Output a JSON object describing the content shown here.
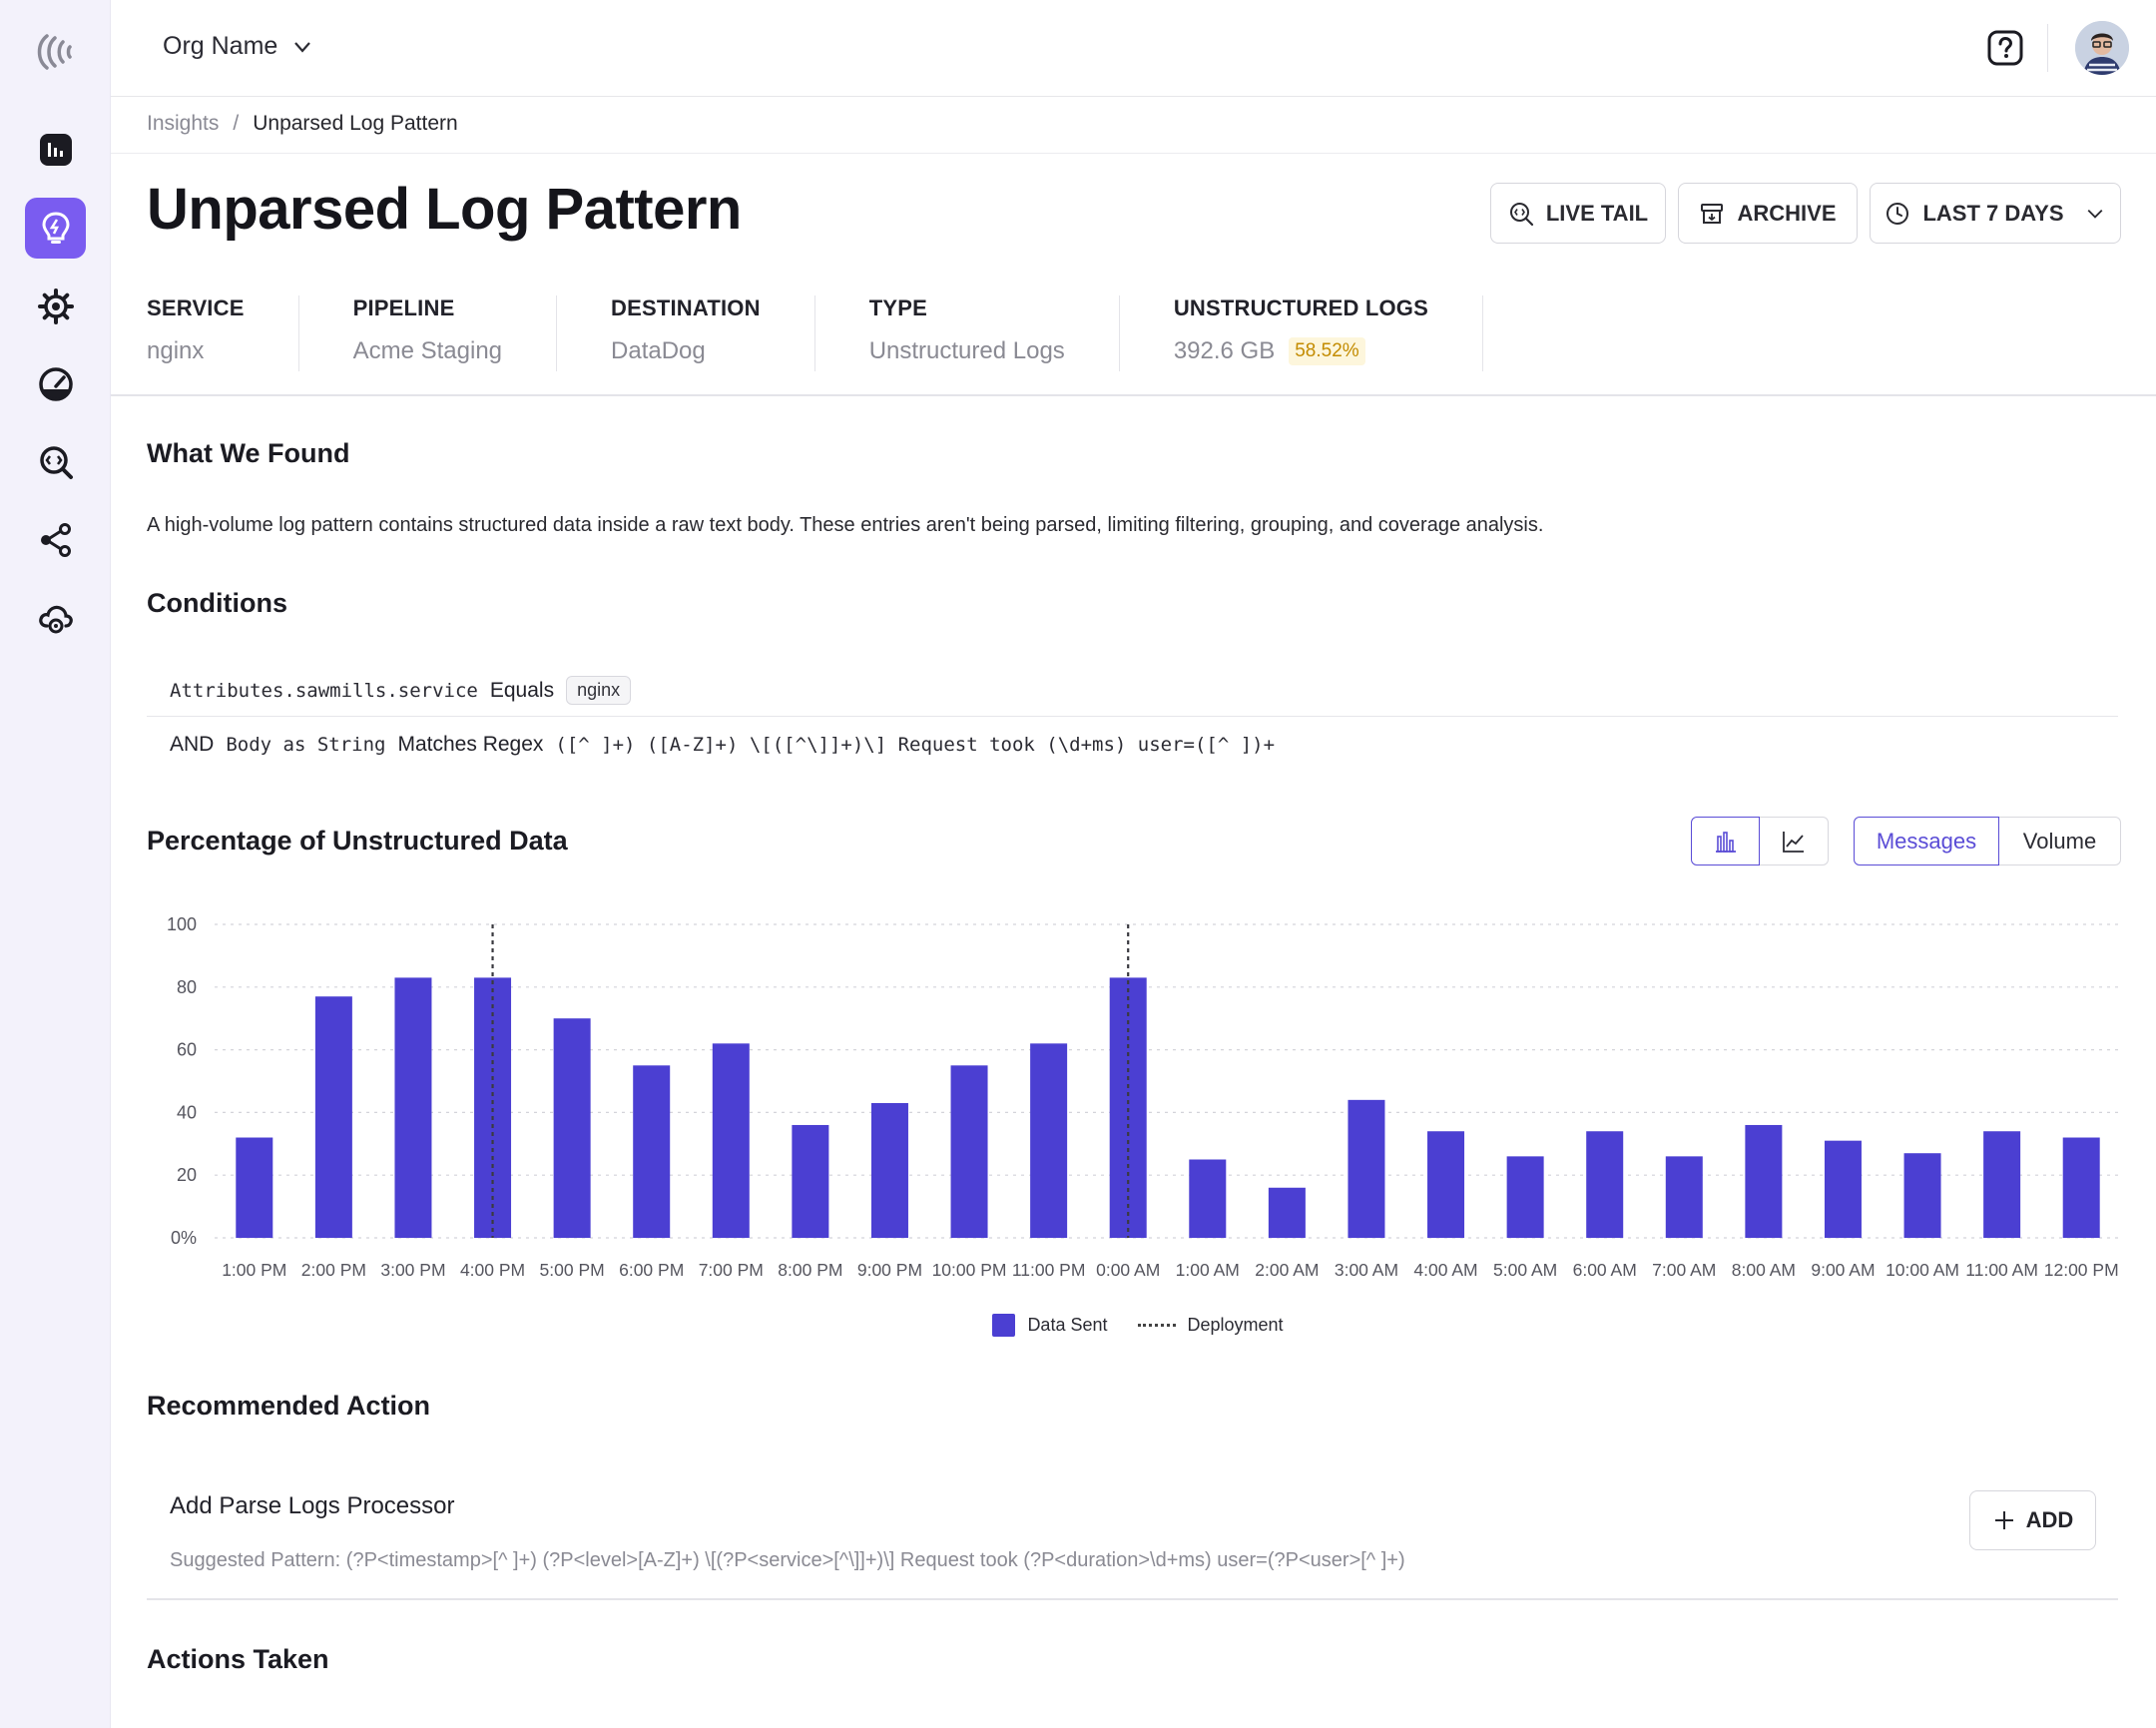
{
  "org": {
    "name": "Org Name"
  },
  "breadcrumb": {
    "parent": "Insights",
    "separator": "/",
    "current": "Unparsed Log Pattern"
  },
  "page": {
    "title": "Unparsed Log Pattern"
  },
  "actions": {
    "live_tail": "LIVE TAIL",
    "archive": "ARCHIVE",
    "range": "LAST 7 DAYS"
  },
  "meta": [
    {
      "label": "SERVICE",
      "value": "nginx"
    },
    {
      "label": "PIPELINE",
      "value": "Acme Staging"
    },
    {
      "label": "DESTINATION",
      "value": "DataDog"
    },
    {
      "label": "TYPE",
      "value": "Unstructured Logs"
    },
    {
      "label": "UNSTRUCTURED LOGS",
      "value": "392.6 GB",
      "badge": "58.52%"
    }
  ],
  "found": {
    "heading": "What We Found",
    "text": "A high-volume log pattern contains structured data inside a raw text body. These entries aren't being parsed, limiting filtering, grouping, and coverage analysis."
  },
  "conditions": {
    "heading": "Conditions",
    "row1": {
      "field": "Attributes.sawmills.service",
      "op": "Equals",
      "value": "nginx"
    },
    "row2": {
      "joiner": "AND",
      "field": "Body as String",
      "op": "Matches Regex",
      "value": "([^ ]+) ([A-Z]+) \\[([^\\]]+)\\] Request took (\\d+ms) user=([^ ])+"
    }
  },
  "chart_section": {
    "heading": "Percentage of Unstructured Data",
    "toggle_messages": "Messages",
    "toggle_volume": "Volume"
  },
  "chart_data": {
    "type": "bar",
    "categories": [
      "1:00 PM",
      "2:00 PM",
      "3:00 PM",
      "4:00 PM",
      "5:00 PM",
      "6:00 PM",
      "7:00 PM",
      "8:00 PM",
      "9:00 PM",
      "10:00 PM",
      "11:00 PM",
      "0:00 AM",
      "1:00 AM",
      "2:00 AM",
      "3:00 AM",
      "4:00 AM",
      "5:00 AM",
      "6:00 AM",
      "7:00 AM",
      "8:00 AM",
      "9:00 AM",
      "10:00 AM",
      "11:00 AM",
      "12:00 PM"
    ],
    "series": [
      {
        "name": "Data Sent",
        "values": [
          32,
          77,
          83,
          83,
          70,
          55,
          62,
          36,
          43,
          55,
          62,
          83,
          25,
          16,
          44,
          34,
          26,
          34,
          26,
          36,
          31,
          27,
          34,
          32
        ]
      }
    ],
    "deployments": [
      "4:00 PM",
      "0:00 AM"
    ],
    "deployment_label": "Deployment",
    "ylim": [
      0,
      100
    ],
    "yticks": [
      "0%",
      "20",
      "40",
      "60",
      "80",
      "100"
    ],
    "color": "#4b3fd2",
    "grid": true,
    "legend": "bottom-center"
  },
  "recommended": {
    "heading": "Recommended Action",
    "title": "Add Parse Logs Processor",
    "suggestion": "Suggested Pattern: (?P<timestamp>[^ ]+) (?P<level>[A-Z]+) \\[(?P<service>[^\\]]+)\\] Request took (?P<duration>\\d+ms) user=(?P<user>[^ ]+)",
    "add_label": "ADD"
  },
  "actions_taken": {
    "heading": "Actions Taken"
  }
}
